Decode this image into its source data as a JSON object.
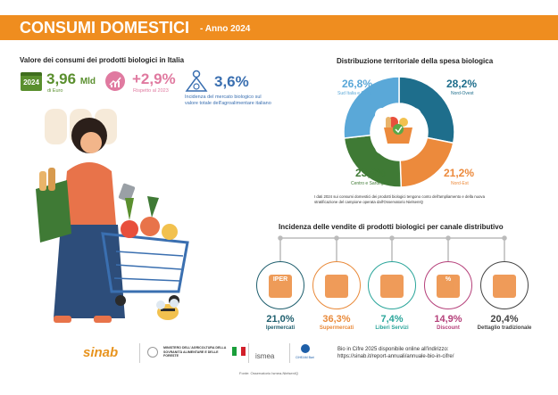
{
  "header": {
    "title": "CONSUMI DOMESTICI",
    "subtitle": "- Anno 2024"
  },
  "value_section": {
    "title": "Valore dei consumi dei prodotti biologici in Italia",
    "year_badge": "2024",
    "value": "3,96",
    "value_unit": "Mld",
    "value_caption": "di Euro",
    "growth": "+2,9%",
    "growth_caption": "Rispetto al 2023",
    "share": "3,6%",
    "share_caption_1": "Incidenza del mercato biologico sul",
    "share_caption_2": "valore totale dell'agroalimentare italiano"
  },
  "chart_data": {
    "type": "pie",
    "title": "Distribuzione territoriale della spesa biologica",
    "slices": [
      {
        "label": "Nord-Ovest",
        "value": 28.2,
        "text": "28,2%",
        "color": "#1e6e8c"
      },
      {
        "label": "Nord-Est",
        "value": 21.2,
        "text": "21,2%",
        "color": "#ec8a3c"
      },
      {
        "label": "Centro e Sardegna",
        "value": 23.8,
        "text": "23,8%",
        "color": "#3f7a35"
      },
      {
        "label": "Sud Italia e Sicilia",
        "value": 26.8,
        "text": "26,8%",
        "color": "#5aa8d8"
      }
    ],
    "note_1": "I dati 2024 sui consumi domestici dei prodotti biologici tengono conto dell'ampliamento e della nuova",
    "note_2": "stratificazione del campione operata dall'Osservatorio NielsenIQ"
  },
  "channels": {
    "title": "Incidenza delle vendite di prodotti biologici per canale distributivo",
    "items": [
      {
        "value": "21,0%",
        "name": "Ipermercati",
        "color": "#1f5f6e",
        "icon_text": "IPER"
      },
      {
        "value": "36,3%",
        "name": "Supermercati",
        "color": "#e98a3a",
        "icon_text": ""
      },
      {
        "value": "7,4%",
        "name": "Liberi Servizi",
        "color": "#2aa59a",
        "icon_text": ""
      },
      {
        "value": "14,9%",
        "name": "Discount",
        "color": "#b5407a",
        "icon_text": "%"
      },
      {
        "value": "20,4%",
        "name": "Dettaglio tradizionale",
        "color": "#444",
        "icon_text": ""
      }
    ]
  },
  "footer": {
    "logos": {
      "sinab": "sinab",
      "ministry": "MINISTERO DELL'AGRICOLTURA DELLA SOVRANITÀ ALIMENTARE E DELLE FORESTE",
      "ismea": "ismea",
      "ciheam": "CIHEAM Bari"
    },
    "info_1": "Bio in Cifre 2025 disponibile online all'indirizzo:",
    "info_2": "https://sinab.it/report-annuali/annuale-bio-in-cifre/",
    "source": "Fonte: Osservatorio Ismea-NielsenIQ"
  }
}
